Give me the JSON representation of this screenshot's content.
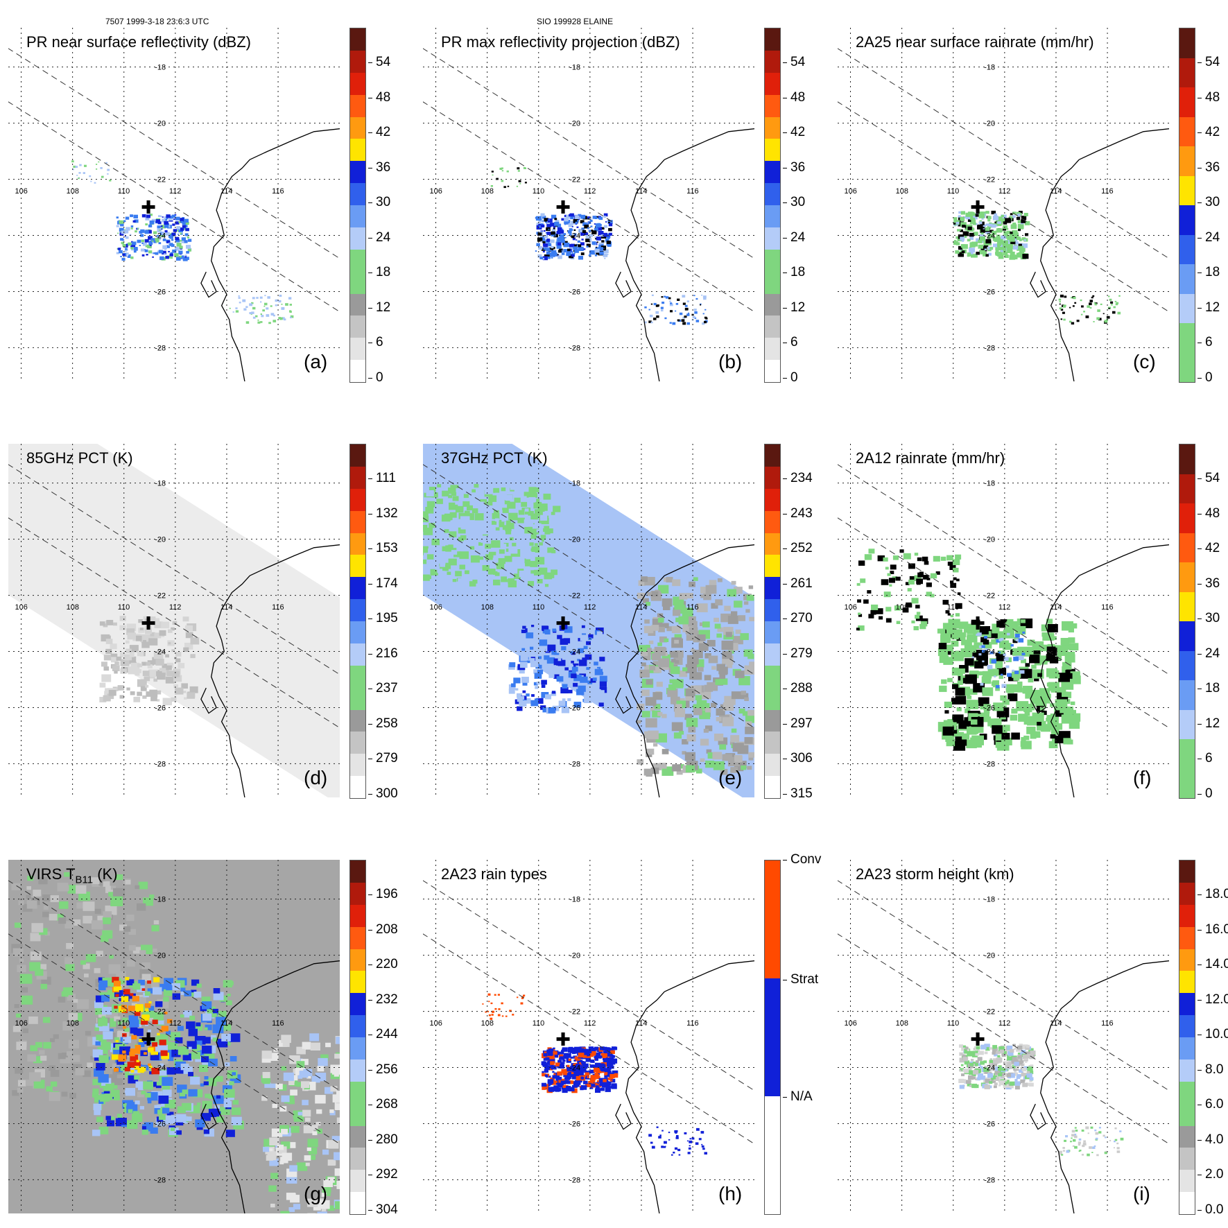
{
  "header": {
    "left": "7507 1999-3-18 23:6:3 UTC",
    "center": "SIO 199928 ELAINE"
  },
  "map_labels": {
    "lat": [
      "-18",
      "-20",
      "-22",
      "-24",
      "-26",
      "-28"
    ],
    "lon": [
      "106",
      "108",
      "110",
      "112",
      "114",
      "116"
    ]
  },
  "storm_center_icon": "plus-marker-icon",
  "panels": [
    {
      "id": "a",
      "title": "PR near surface reflectivity (dBZ)",
      "label": "(a)",
      "colorbar": [
        "54",
        "48",
        "42",
        "36",
        "30",
        "24",
        "18",
        "12",
        "6",
        "0"
      ],
      "fill": "pr_refl"
    },
    {
      "id": "b",
      "title": "PR max reflectivity projection (dBZ)",
      "label": "(b)",
      "colorbar": [
        "54",
        "48",
        "42",
        "36",
        "30",
        "24",
        "18",
        "12",
        "6",
        "0"
      ],
      "fill": "pr_max"
    },
    {
      "id": "c",
      "title": "2A25 near surface rainrate (mm/hr)",
      "label": "(c)",
      "colorbar": [
        "54",
        "48",
        "42",
        "36",
        "30",
        "24",
        "18",
        "12",
        "6",
        "0"
      ],
      "fill": "rain25"
    },
    {
      "id": "d",
      "title": "85GHz PCT (K)",
      "label": "(d)",
      "colorbar": [
        "111",
        "132",
        "153",
        "174",
        "195",
        "216",
        "237",
        "258",
        "279",
        "300"
      ],
      "fill": "pct85"
    },
    {
      "id": "e",
      "title": "37GHz PCT (K)",
      "label": "(e)",
      "colorbar": [
        "234",
        "243",
        "252",
        "261",
        "270",
        "279",
        "288",
        "297",
        "306",
        "315"
      ],
      "fill": "pct37"
    },
    {
      "id": "f",
      "title": "2A12 rainrate (mm/hr)",
      "label": "(f)",
      "colorbar": [
        "54",
        "48",
        "42",
        "36",
        "30",
        "24",
        "18",
        "12",
        "6",
        "0"
      ],
      "fill": "rain12"
    },
    {
      "id": "g",
      "title": "VIRS T",
      "title_sub": "B11",
      "title_suffix": " (K)",
      "label": "(g)",
      "colorbar": [
        "196",
        "208",
        "220",
        "232",
        "244",
        "256",
        "268",
        "280",
        "292",
        "304"
      ],
      "fill": "virs"
    },
    {
      "id": "h",
      "title": "2A23 rain types",
      "label": "(h)",
      "colorbar": [
        "Conv",
        "Strat",
        "N/A"
      ],
      "fill": "raintype"
    },
    {
      "id": "i",
      "title": "2A23 storm height (km)",
      "label": "(i)",
      "colorbar": [
        "18.0",
        "16.0",
        "14.0",
        "12.0",
        "10.0",
        "8.0",
        "6.0",
        "4.0",
        "2.0",
        "0.0"
      ],
      "fill": "height"
    }
  ],
  "colors": {
    "dark_red": "#6b1a10",
    "red": "#e0200a",
    "orange": "#ff8a10",
    "yellow": "#ffe400",
    "blue": "#1020d8",
    "mid_blue": "#3a7cf0",
    "light_blue": "#a8c4f6",
    "green": "#7fd67f",
    "gray": "#a0a0a0",
    "light_gray": "#ededed"
  }
}
